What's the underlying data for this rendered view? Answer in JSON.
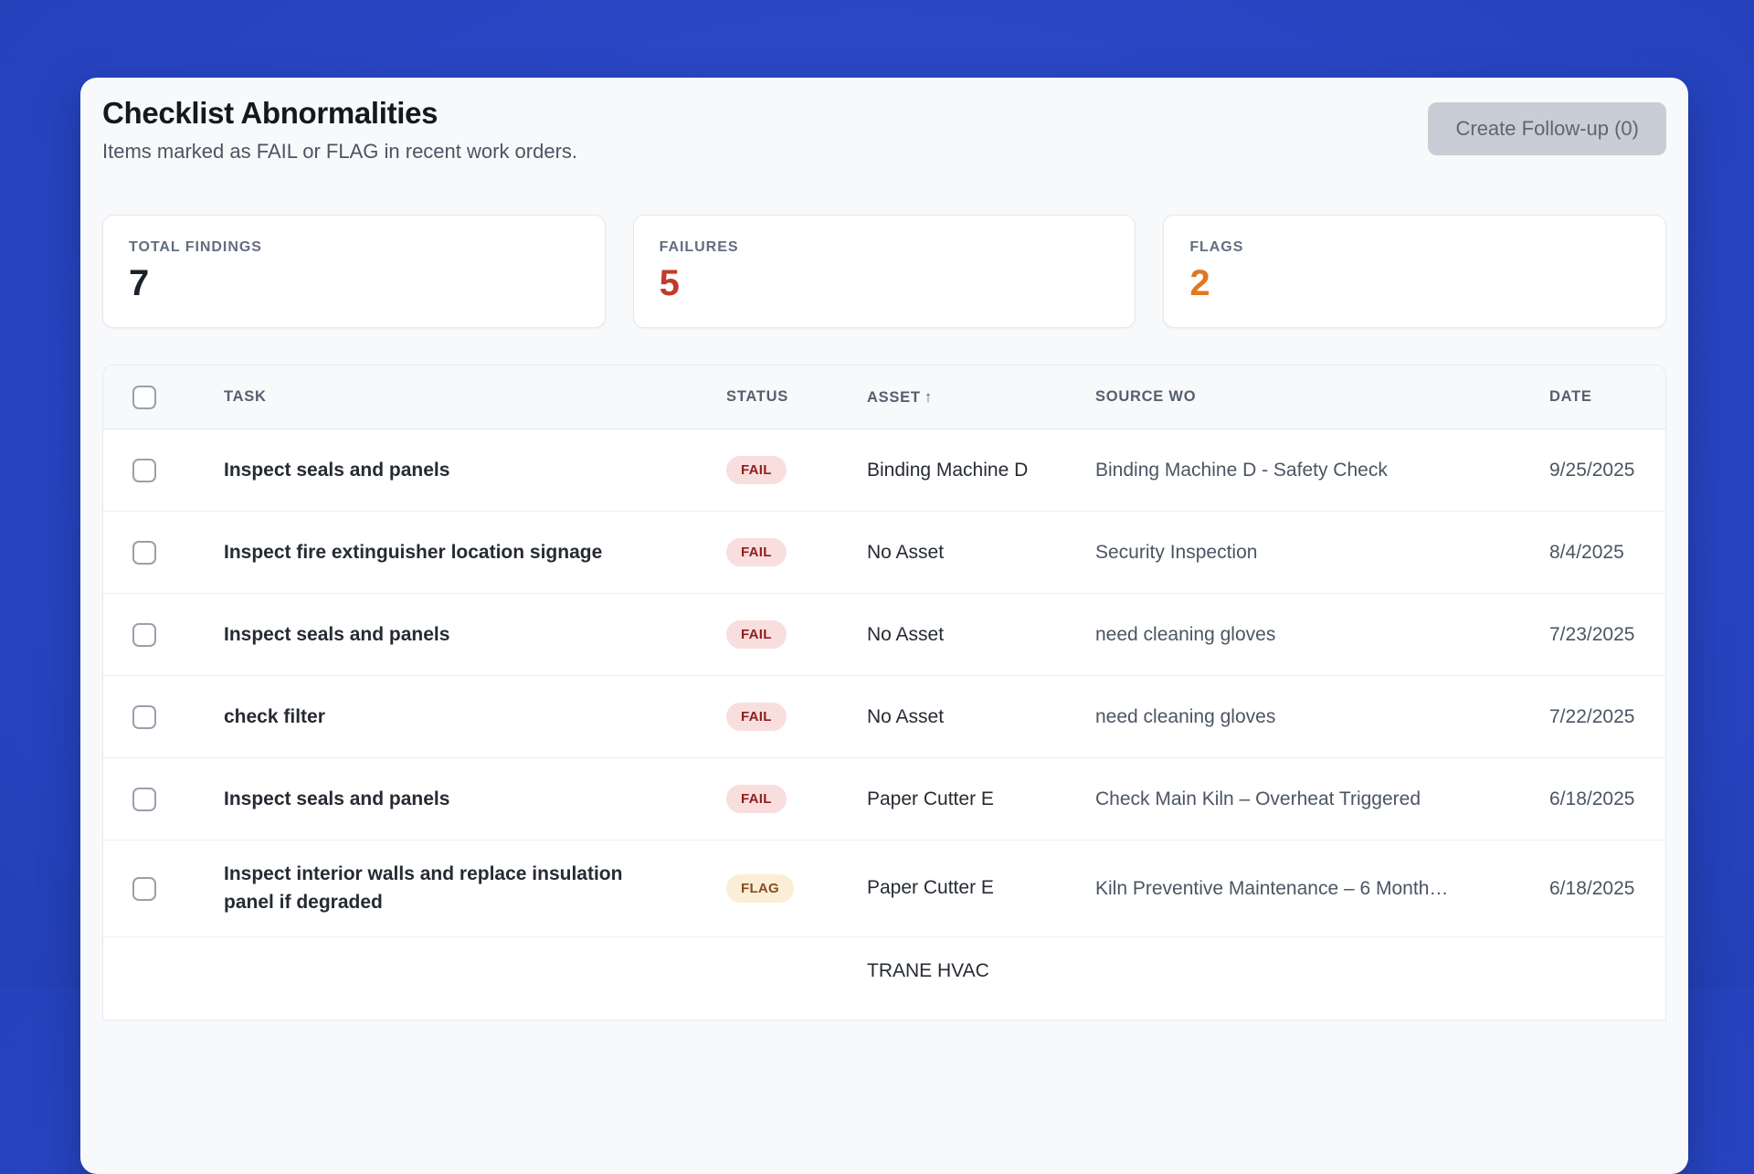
{
  "page": {
    "background_color": "#2b4ac9"
  },
  "header": {
    "title": "Checklist Abnormalities",
    "subtitle": "Items marked as FAIL or FLAG in recent work orders.",
    "create_followup_label": "Create Follow-up (0)"
  },
  "stats": [
    {
      "label": "TOTAL FINDINGS",
      "value": "7",
      "color": "#1a202c"
    },
    {
      "label": "FAILURES",
      "value": "5",
      "color": "#c23b2a"
    },
    {
      "label": "FLAGS",
      "value": "2",
      "color": "#e07820"
    }
  ],
  "table": {
    "columns": {
      "task": "TASK",
      "status": "STATUS",
      "asset": "ASSET",
      "asset_sort_indicator": "↑",
      "source": "SOURCE WO",
      "date": "DATE"
    },
    "badge_colors": {
      "FAIL": {
        "bg": "#f9dede",
        "text": "#8f1d1d"
      },
      "FLAG": {
        "bg": "#faeed6",
        "text": "#8a4a26"
      }
    },
    "rows": [
      {
        "task": "Inspect seals and panels",
        "status": "FAIL",
        "asset": "Binding Machine D",
        "source": "Binding Machine D - Safety Check",
        "date": "9/25/2025",
        "partial": false
      },
      {
        "task": "Inspect fire extinguisher location signage",
        "status": "FAIL",
        "asset": "No Asset",
        "source": "Security Inspection",
        "date": "8/4/2025",
        "partial": false
      },
      {
        "task": "Inspect seals and panels",
        "status": "FAIL",
        "asset": "No Asset",
        "source": "need cleaning gloves",
        "date": "7/23/2025",
        "partial": false
      },
      {
        "task": "check filter",
        "status": "FAIL",
        "asset": "No Asset",
        "source": "need cleaning gloves",
        "date": "7/22/2025",
        "partial": false
      },
      {
        "task": "Inspect seals and panels",
        "status": "FAIL",
        "asset": "Paper Cutter E",
        "source": "Check Main Kiln – Overheat Triggered",
        "date": "6/18/2025",
        "partial": false
      },
      {
        "task": "Inspect interior walls and replace insulation panel if degraded",
        "status": "FLAG",
        "asset": "Paper Cutter E",
        "source": "Kiln Preventive Maintenance – 6 Month…",
        "date": "6/18/2025",
        "partial": false
      },
      {
        "task": "",
        "status": "",
        "asset": "TRANE HVAC",
        "source": "",
        "date": "",
        "partial": true
      }
    ]
  }
}
